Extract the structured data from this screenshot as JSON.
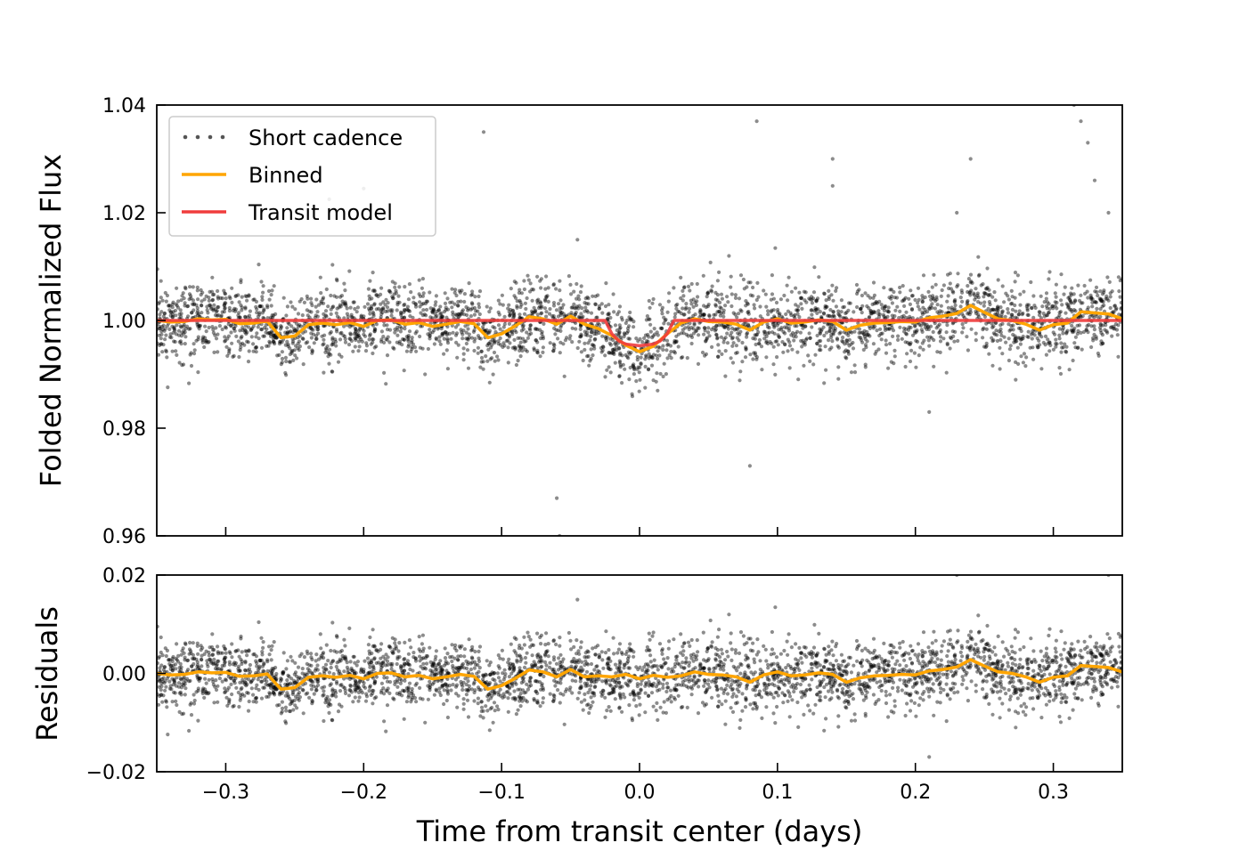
{
  "chart_data": [
    {
      "type": "scatter",
      "panel": "top",
      "title": "",
      "xlabel": "",
      "ylabel": "Folded Normalized Flux",
      "xlim": [
        -0.35,
        0.35
      ],
      "ylim": [
        0.96,
        1.04
      ],
      "x_ticks": [
        -0.3,
        -0.2,
        -0.1,
        0.0,
        0.1,
        0.2,
        0.3
      ],
      "y_ticks": [
        0.96,
        0.98,
        1.0,
        1.02,
        1.04
      ],
      "y_tick_labels": [
        "0.96",
        "0.98",
        "1.00",
        "1.02",
        "1.04"
      ],
      "grid": false,
      "legend": {
        "placement": "top-left",
        "entries": [
          "Short cadence",
          "Binned",
          "Transit model"
        ]
      },
      "series": [
        {
          "name": "Short cadence",
          "kind": "points",
          "color": "#000000",
          "baseline": 1.0,
          "scatter_sigma": 0.0035,
          "n_points": 3500,
          "outliers": [
            [
              -0.283,
              0.9995
            ],
            [
              -0.225,
              1.0225
            ],
            [
              -0.2,
              1.0245
            ],
            [
              -0.113,
              1.035
            ],
            [
              -0.06,
              0.967
            ],
            [
              -0.058,
              0.96
            ],
            [
              -0.045,
              1.015
            ],
            [
              0.08,
              0.973
            ],
            [
              0.085,
              1.037
            ],
            [
              0.14,
              1.03
            ],
            [
              0.14,
              1.025
            ],
            [
              0.21,
              0.983
            ],
            [
              0.23,
              1.02
            ],
            [
              0.24,
              1.03
            ],
            [
              0.315,
              1.04
            ],
            [
              0.32,
              1.037
            ],
            [
              0.325,
              1.033
            ],
            [
              0.33,
              1.026
            ],
            [
              0.34,
              1.02
            ]
          ]
        },
        {
          "name": "Binned",
          "kind": "line",
          "color": "#ffa500",
          "x": [
            -0.35,
            -0.34,
            -0.33,
            -0.32,
            -0.31,
            -0.3,
            -0.29,
            -0.28,
            -0.27,
            -0.26,
            -0.25,
            -0.24,
            -0.23,
            -0.22,
            -0.21,
            -0.2,
            -0.19,
            -0.18,
            -0.17,
            -0.16,
            -0.15,
            -0.14,
            -0.13,
            -0.12,
            -0.11,
            -0.1,
            -0.09,
            -0.08,
            -0.07,
            -0.06,
            -0.05,
            -0.04,
            -0.03,
            -0.02,
            -0.01,
            0.0,
            0.01,
            0.02,
            0.03,
            0.04,
            0.05,
            0.06,
            0.07,
            0.08,
            0.09,
            0.1,
            0.11,
            0.12,
            0.13,
            0.14,
            0.15,
            0.16,
            0.17,
            0.18,
            0.19,
            0.2,
            0.21,
            0.22,
            0.23,
            0.24,
            0.25,
            0.26,
            0.27,
            0.28,
            0.29,
            0.3,
            0.31,
            0.32,
            0.33,
            0.34,
            0.35
          ],
          "y": [
            1.0,
            0.9997,
            0.9998,
            1.0003,
            1.0001,
            1.0002,
            0.9994,
            0.9995,
            0.9999,
            0.9968,
            0.9971,
            0.9992,
            0.9995,
            0.9992,
            0.9996,
            0.9989,
            1.0,
            1.0001,
            0.9993,
            0.9996,
            0.9989,
            0.9993,
            0.9998,
            0.9994,
            0.9968,
            0.9975,
            0.999,
            1.0007,
            1.0003,
            0.9993,
            1.0008,
            0.9993,
            0.9985,
            0.9972,
            0.9954,
            0.9942,
            0.9952,
            0.9975,
            0.9995,
            1.0003,
            0.9998,
            0.9997,
            0.9993,
            0.9982,
            0.9997,
            1.0003,
            0.9995,
            0.9997,
            1.0001,
            0.9998,
            0.9982,
            0.9991,
            0.9995,
            0.9996,
            0.9998,
            0.9997,
            1.0005,
            1.0008,
            1.0013,
            1.0028,
            1.0015,
            1.0003,
            1.0,
            0.9993,
            0.9982,
            0.9992,
            0.9995,
            1.0016,
            1.0014,
            1.0012,
            1.0003
          ]
        },
        {
          "name": "Transit model",
          "kind": "line",
          "color": "#f03c3c",
          "x": [
            -0.35,
            -0.025,
            -0.02,
            -0.015,
            -0.01,
            0.0,
            0.01,
            0.015,
            0.02,
            0.025,
            0.35
          ],
          "y": [
            1.0,
            1.0,
            0.9975,
            0.9962,
            0.9956,
            0.9953,
            0.9956,
            0.9962,
            0.9975,
            1.0,
            1.0
          ]
        }
      ]
    },
    {
      "type": "scatter",
      "panel": "bottom",
      "title": "",
      "xlabel": "Time from transit center (days)",
      "ylabel": "Residuals",
      "xlim": [
        -0.35,
        0.35
      ],
      "ylim": [
        -0.02,
        0.02
      ],
      "x_ticks": [
        -0.3,
        -0.2,
        -0.1,
        0.0,
        0.1,
        0.2,
        0.3
      ],
      "x_tick_labels": [
        "−0.3",
        "−0.2",
        "−0.1",
        "0.0",
        "0.1",
        "0.2",
        "0.3"
      ],
      "y_ticks": [
        -0.02,
        0.0,
        0.02
      ],
      "y_tick_labels": [
        "−0.02",
        "0.00",
        "0.02"
      ],
      "grid": false,
      "series": [
        {
          "name": "Short cadence",
          "kind": "points",
          "color": "#000000",
          "baseline": 0.0,
          "scatter_sigma": 0.0035,
          "n_points": 3500
        },
        {
          "name": "Binned",
          "kind": "line",
          "color": "#ffa500",
          "x": [
            -0.35,
            -0.34,
            -0.33,
            -0.32,
            -0.31,
            -0.3,
            -0.29,
            -0.28,
            -0.27,
            -0.26,
            -0.25,
            -0.24,
            -0.23,
            -0.22,
            -0.21,
            -0.2,
            -0.19,
            -0.18,
            -0.17,
            -0.16,
            -0.15,
            -0.14,
            -0.13,
            -0.12,
            -0.11,
            -0.1,
            -0.09,
            -0.08,
            -0.07,
            -0.06,
            -0.05,
            -0.04,
            -0.03,
            -0.02,
            -0.01,
            0.0,
            0.01,
            0.02,
            0.03,
            0.04,
            0.05,
            0.06,
            0.07,
            0.08,
            0.09,
            0.1,
            0.11,
            0.12,
            0.13,
            0.14,
            0.15,
            0.16,
            0.17,
            0.18,
            0.19,
            0.2,
            0.21,
            0.22,
            0.23,
            0.24,
            0.25,
            0.26,
            0.27,
            0.28,
            0.29,
            0.3,
            0.31,
            0.32,
            0.33,
            0.34,
            0.35
          ],
          "y": [
            0.0,
            -0.0003,
            -0.0002,
            0.0003,
            0.0001,
            0.0002,
            -0.0006,
            -0.0005,
            -0.0001,
            -0.0032,
            -0.0029,
            -0.0008,
            -0.0005,
            -0.0008,
            -0.0004,
            -0.0011,
            0.0,
            0.0001,
            -0.0007,
            -0.0004,
            -0.0011,
            -0.0007,
            -0.0002,
            -0.0006,
            -0.0032,
            -0.0025,
            -0.001,
            0.0007,
            0.0003,
            -0.0007,
            0.0008,
            -0.0007,
            -0.0005,
            -0.0007,
            -0.0002,
            -0.0011,
            -0.0004,
            -0.0008,
            -0.0005,
            0.0003,
            -0.0002,
            -0.0003,
            -0.0007,
            -0.0018,
            -0.0003,
            0.0003,
            -0.0005,
            -0.0003,
            0.0001,
            -0.0002,
            -0.0018,
            -0.0009,
            -0.0005,
            -0.0004,
            -0.0002,
            -0.0003,
            0.0005,
            0.0008,
            0.0013,
            0.0028,
            0.0015,
            0.0003,
            0.0,
            -0.0007,
            -0.0018,
            -0.0008,
            -0.0005,
            0.0016,
            0.0014,
            0.0012,
            0.0003
          ]
        }
      ]
    }
  ]
}
